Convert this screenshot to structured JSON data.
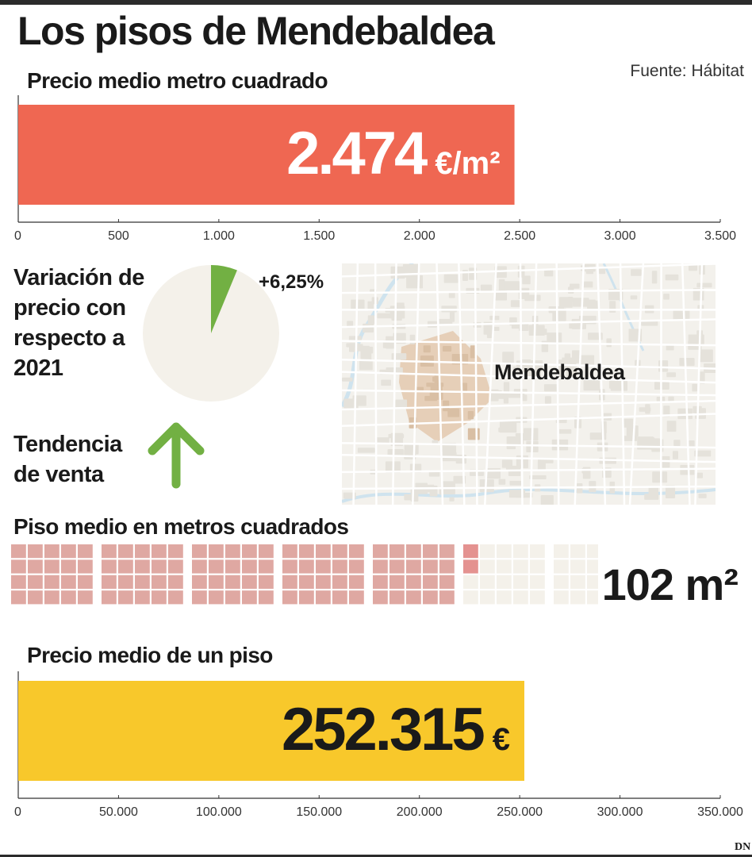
{
  "title": "Los pisos de  Mendebaldea",
  "source": "Fuente: Hábitat",
  "logo": "DN",
  "colors": {
    "price_bar": "#ef6752",
    "total_bar": "#f8c82b",
    "pie_rest": "#f4f1ea",
    "pie_slice": "#72b043",
    "arrow": "#72b043",
    "square_filled": "#dfa8a2",
    "square_highlight": "#e49290",
    "square_empty": "#f4f1ea",
    "map_area": "#e6cfb8"
  },
  "icons": {
    "trend": "arrow-up-icon"
  },
  "chart_data": [
    {
      "type": "bar",
      "title": "Precio medio metro cuadrado",
      "categories": [
        ""
      ],
      "values": [
        2474
      ],
      "value_label": "2.474",
      "value_unit": "€/m²",
      "xlim": [
        0,
        3500
      ],
      "ticks": [
        0,
        500,
        1000,
        1500,
        2000,
        2500,
        3000,
        3500
      ],
      "tick_labels": [
        "0",
        "500",
        "1.000",
        "1.500",
        "2.000",
        "2.500",
        "3.000",
        "3.500"
      ]
    },
    {
      "type": "pie",
      "title": "Variación de precio con respecto a 2021",
      "values": [
        6.25,
        93.75
      ],
      "slice_label": "+6,25%"
    },
    {
      "type": "waffle",
      "title": "Piso medio en metros cuadrados",
      "value": 102,
      "total": 200,
      "value_label": "102 m²"
    },
    {
      "type": "bar",
      "title": "Precio medio de un piso",
      "categories": [
        ""
      ],
      "values": [
        252315
      ],
      "value_label": "252.315",
      "value_unit": "€",
      "xlim": [
        0,
        350000
      ],
      "ticks": [
        0,
        50000,
        100000,
        150000,
        200000,
        250000,
        300000,
        350000
      ],
      "tick_labels": [
        "0",
        "50.000",
        "100.000",
        "150.000",
        "200.000",
        "250.000",
        "300.000",
        "350.000"
      ]
    }
  ],
  "trend": {
    "label": "Tendencia de venta",
    "direction": "up"
  },
  "map": {
    "label": "Mendebaldea"
  }
}
